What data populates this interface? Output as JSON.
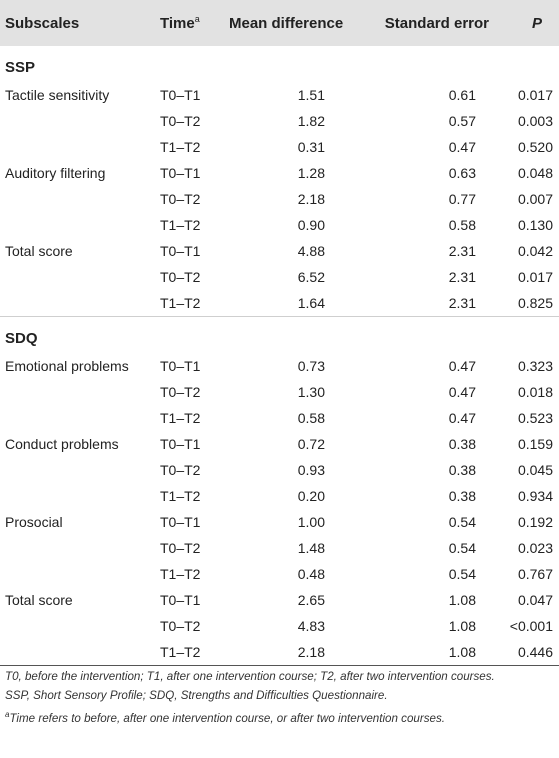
{
  "header": {
    "subscales": "Subscales",
    "time": "Time",
    "time_sup": "a",
    "mean_difference": "Mean difference",
    "standard_error": "Standard error",
    "p": "P"
  },
  "sections": [
    {
      "name": "SSP",
      "groups": [
        {
          "label": "Tactile sensitivity",
          "rows": [
            {
              "time": "T0–T1",
              "mean": "1.51",
              "se": "0.61",
              "p": "0.017"
            },
            {
              "time": "T0–T2",
              "mean": "1.82",
              "se": "0.57",
              "p": "0.003"
            },
            {
              "time": "T1–T2",
              "mean": "0.31",
              "se": "0.47",
              "p": "0.520"
            }
          ]
        },
        {
          "label": "Auditory filtering",
          "rows": [
            {
              "time": "T0–T1",
              "mean": "1.28",
              "se": "0.63",
              "p": "0.048"
            },
            {
              "time": "T0–T2",
              "mean": "2.18",
              "se": "0.77",
              "p": "0.007"
            },
            {
              "time": "T1–T2",
              "mean": "0.90",
              "se": "0.58",
              "p": "0.130"
            }
          ]
        },
        {
          "label": "Total score",
          "rows": [
            {
              "time": "T0–T1",
              "mean": "4.88",
              "se": "2.31",
              "p": "0.042"
            },
            {
              "time": "T0–T2",
              "mean": "6.52",
              "se": "2.31",
              "p": "0.017"
            },
            {
              "time": "T1–T2",
              "mean": "1.64",
              "se": "2.31",
              "p": "0.825"
            }
          ]
        }
      ]
    },
    {
      "name": "SDQ",
      "groups": [
        {
          "label": "Emotional problems",
          "rows": [
            {
              "time": "T0–T1",
              "mean": "0.73",
              "se": "0.47",
              "p": "0.323"
            },
            {
              "time": "T0–T2",
              "mean": "1.30",
              "se": "0.47",
              "p": "0.018"
            },
            {
              "time": "T1–T2",
              "mean": "0.58",
              "se": "0.47",
              "p": "0.523"
            }
          ]
        },
        {
          "label": "Conduct problems",
          "rows": [
            {
              "time": "T0–T1",
              "mean": "0.72",
              "se": "0.38",
              "p": "0.159"
            },
            {
              "time": "T0–T2",
              "mean": "0.93",
              "se": "0.38",
              "p": "0.045"
            },
            {
              "time": "T1–T2",
              "mean": "0.20",
              "se": "0.38",
              "p": "0.934"
            }
          ]
        },
        {
          "label": "Prosocial",
          "rows": [
            {
              "time": "T0–T1",
              "mean": "1.00",
              "se": "0.54",
              "p": "0.192"
            },
            {
              "time": "T0–T2",
              "mean": "1.48",
              "se": "0.54",
              "p": "0.023"
            },
            {
              "time": "T1–T2",
              "mean": "0.48",
              "se": "0.54",
              "p": "0.767"
            }
          ]
        },
        {
          "label": "Total score",
          "rows": [
            {
              "time": "T0–T1",
              "mean": "2.65",
              "se": "1.08",
              "p": "0.047"
            },
            {
              "time": "T0–T2",
              "mean": "4.83",
              "se": "1.08",
              "p": "<0.001"
            },
            {
              "time": "T1–T2",
              "mean": "2.18",
              "se": "1.08",
              "p": "0.446"
            }
          ]
        }
      ]
    }
  ],
  "footnotes": {
    "abbrev_times": "T0, before the intervention; T1, after one intervention course; T2, after two intervention courses.",
    "abbrev_scales": "SSP, Short Sensory Profile; SDQ, Strengths and Difficulties Questionnaire.",
    "note_marker": "a",
    "note_text": "Time refers to before, after one intervention course, or after two intervention courses."
  }
}
